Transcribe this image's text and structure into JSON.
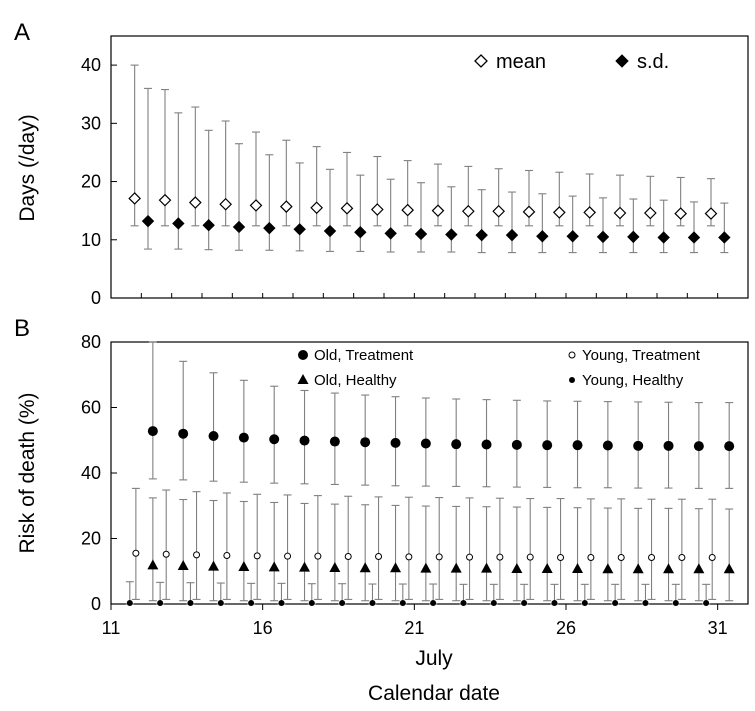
{
  "chart_data": [
    {
      "panel": "A",
      "type": "scatter",
      "ylabel": "Days (/day)",
      "ylim": [
        0,
        45
      ],
      "yticks": [
        0,
        10,
        20,
        30,
        40
      ],
      "legend": [
        {
          "label": "mean",
          "marker": "diamond-open"
        },
        {
          "label": "s.d.",
          "marker": "diamond-filled"
        }
      ],
      "legend_position": "top-right",
      "x": [
        12,
        13,
        14,
        15,
        16,
        17,
        18,
        19,
        20,
        21,
        22,
        23,
        24,
        25,
        26,
        27,
        28,
        29,
        30,
        31
      ],
      "series": [
        {
          "name": "mean",
          "marker": "diamond-open",
          "values": [
            17.1,
            16.8,
            16.4,
            16.1,
            15.9,
            15.7,
            15.5,
            15.4,
            15.2,
            15.1,
            15.0,
            14.9,
            14.9,
            14.8,
            14.7,
            14.7,
            14.6,
            14.6,
            14.5,
            14.5
          ],
          "err_high": [
            40.0,
            35.8,
            32.8,
            30.4,
            28.5,
            27.1,
            26.0,
            25.0,
            24.3,
            23.6,
            23.0,
            22.6,
            22.2,
            21.9,
            21.6,
            21.3,
            21.1,
            20.9,
            20.7,
            20.5
          ],
          "err_low": [
            12.4,
            12.4,
            12.4,
            12.4,
            12.4,
            12.4,
            12.4,
            12.4,
            12.4,
            12.4,
            12.4,
            12.4,
            12.4,
            12.4,
            12.4,
            12.4,
            12.4,
            12.4,
            12.4,
            12.4
          ]
        },
        {
          "name": "s.d.",
          "marker": "diamond-filled",
          "values": [
            13.2,
            12.8,
            12.5,
            12.2,
            12.0,
            11.8,
            11.5,
            11.3,
            11.1,
            11.0,
            10.9,
            10.8,
            10.8,
            10.6,
            10.6,
            10.5,
            10.5,
            10.4,
            10.4,
            10.4
          ],
          "err_high": [
            36.0,
            31.8,
            28.8,
            26.5,
            24.6,
            23.2,
            22.1,
            21.1,
            20.4,
            19.8,
            19.1,
            18.6,
            18.2,
            17.9,
            17.5,
            17.2,
            17.0,
            16.8,
            16.5,
            16.3
          ],
          "err_low": [
            8.4,
            8.4,
            8.3,
            8.2,
            8.2,
            8.1,
            8.0,
            8.0,
            7.9,
            7.9,
            7.9,
            7.8,
            7.8,
            7.8,
            7.8,
            7.8,
            7.8,
            7.8,
            7.8,
            7.8
          ]
        }
      ]
    },
    {
      "panel": "B",
      "type": "scatter",
      "ylabel": "Risk of death (%)",
      "xlabel": "Calendar date",
      "xsublabel": "July",
      "xlim": [
        11,
        32
      ],
      "xticks": [
        11,
        16,
        21,
        26,
        31
      ],
      "ylim": [
        0,
        80
      ],
      "yticks": [
        0,
        20,
        40,
        60,
        80
      ],
      "legend": [
        {
          "label": "Old, Treatment",
          "marker": "circle-filled-large"
        },
        {
          "label": "Young, Treatment",
          "marker": "circle-open"
        },
        {
          "label": "Old, Healthy",
          "marker": "triangle-filled"
        },
        {
          "label": "Young, Healthy",
          "marker": "circle-filled-small"
        }
      ],
      "legend_position": "top",
      "x": [
        12,
        13,
        14,
        15,
        16,
        17,
        18,
        19,
        20,
        21,
        22,
        23,
        24,
        25,
        26,
        27,
        28,
        29,
        30,
        31
      ],
      "series": [
        {
          "name": "Old, Treatment",
          "marker": "circle-filled-large",
          "values": [
            52.8,
            52.0,
            51.3,
            50.8,
            50.3,
            49.9,
            49.6,
            49.4,
            49.2,
            49.0,
            48.8,
            48.7,
            48.6,
            48.5,
            48.5,
            48.4,
            48.3,
            48.3,
            48.2,
            48.2
          ],
          "err_high": [
            80.0,
            74.1,
            70.6,
            68.3,
            66.5,
            65.2,
            64.4,
            63.8,
            63.3,
            62.9,
            62.6,
            62.4,
            62.2,
            62.0,
            61.9,
            61.8,
            61.7,
            61.6,
            61.5,
            61.5
          ],
          "err_low": [
            38.2,
            37.9,
            37.5,
            37.2,
            36.9,
            36.7,
            36.5,
            36.3,
            36.1,
            36.0,
            35.9,
            35.8,
            35.7,
            35.6,
            35.5,
            35.5,
            35.4,
            35.4,
            35.3,
            35.3
          ]
        },
        {
          "name": "Young, Treatment",
          "marker": "circle-open",
          "values": [
            15.5,
            15.2,
            15.0,
            14.8,
            14.7,
            14.6,
            14.6,
            14.5,
            14.5,
            14.4,
            14.4,
            14.3,
            14.3,
            14.3,
            14.2,
            14.2,
            14.2,
            14.2,
            14.2,
            14.2
          ],
          "err_high": [
            35.3,
            34.8,
            34.3,
            33.9,
            33.5,
            33.3,
            33.1,
            32.9,
            32.7,
            32.6,
            32.5,
            32.4,
            32.3,
            32.2,
            32.2,
            32.1,
            32.1,
            32.0,
            32.0,
            32.0
          ],
          "err_low": [
            1.4,
            1.4,
            1.4,
            1.4,
            1.4,
            1.4,
            1.4,
            1.4,
            1.4,
            1.4,
            1.4,
            1.4,
            1.4,
            1.4,
            1.4,
            1.4,
            1.4,
            1.4,
            1.4,
            1.4
          ]
        },
        {
          "name": "Old, Healthy",
          "marker": "triangle-filled",
          "values": [
            11.8,
            11.6,
            11.4,
            11.3,
            11.2,
            11.1,
            11.0,
            10.9,
            10.9,
            10.8,
            10.8,
            10.8,
            10.7,
            10.7,
            10.7,
            10.6,
            10.6,
            10.6,
            10.6,
            10.6
          ],
          "err_high": [
            32.4,
            31.9,
            31.6,
            31.3,
            31.0,
            30.7,
            30.5,
            30.3,
            30.1,
            29.9,
            29.8,
            29.7,
            29.6,
            29.5,
            29.4,
            29.3,
            29.2,
            29.2,
            29.1,
            29.0
          ],
          "err_low": [
            1.0,
            1.0,
            1.0,
            1.0,
            1.0,
            1.0,
            1.0,
            1.0,
            1.0,
            1.0,
            1.0,
            1.0,
            1.0,
            1.0,
            1.0,
            1.0,
            1.0,
            1.0,
            1.0,
            1.0
          ]
        },
        {
          "name": "Young, Healthy",
          "marker": "circle-filled-small",
          "values": [
            0.3,
            0.3,
            0.3,
            0.3,
            0.3,
            0.3,
            0.3,
            0.3,
            0.3,
            0.3,
            0.3,
            0.3,
            0.3,
            0.3,
            0.3,
            0.3,
            0.3,
            0.3,
            0.3,
            0.3
          ],
          "err_high": [
            6.8,
            6.6,
            6.5,
            6.4,
            6.3,
            6.3,
            6.2,
            6.2,
            6.1,
            6.1,
            6.1,
            6.0,
            6.0,
            6.0,
            6.0,
            6.0,
            6.0,
            6.0,
            6.0,
            6.0
          ],
          "err_low": [
            0,
            0,
            0,
            0,
            0,
            0,
            0,
            0,
            0,
            0,
            0,
            0,
            0,
            0,
            0,
            0,
            0,
            0,
            0,
            0
          ]
        }
      ]
    }
  ],
  "labels": {
    "panel_a": "A",
    "panel_b": "B"
  },
  "colors": {
    "marker": "#000000",
    "errorbar": "#808080",
    "axis": "#000000"
  }
}
